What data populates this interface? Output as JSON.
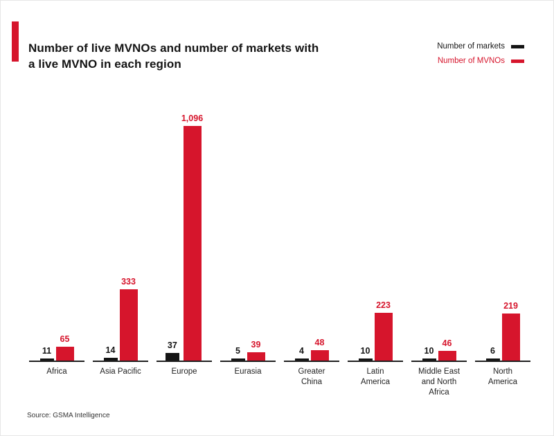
{
  "header": {
    "title_line1": "Number of live MVNOs and number of markets with",
    "title_line2": "a live MVNO in each region"
  },
  "legend": {
    "markets_label": "Number of markets",
    "mvnos_label": "Number of MVNOs"
  },
  "source": "Source: GSMA Intelligence",
  "colors": {
    "markets": "#141414",
    "mvnos": "#d6152c",
    "accent": "#d6152c"
  },
  "chart_data": {
    "type": "bar",
    "title": "Number of live MVNOs and number of markets with a live MVNO in each region",
    "categories": [
      "Africa",
      "Asia Pacific",
      "Europe",
      "Eurasia",
      "Greater China",
      "Latin America",
      "Middle East and North Africa",
      "North America"
    ],
    "category_display": [
      "Africa",
      "Asia Pacific",
      "Europe",
      "Eurasia",
      "Greater\nChina",
      "Latin\nAmerica",
      "Middle East\nand North\nAfrica",
      "North\nAmerica"
    ],
    "series": [
      {
        "name": "Number of markets",
        "color": "#141414",
        "values": [
          11,
          14,
          37,
          5,
          4,
          10,
          10,
          6
        ],
        "labels": [
          "11",
          "14",
          "37",
          "5",
          "4",
          "10",
          "10",
          "6"
        ]
      },
      {
        "name": "Number of MVNOs",
        "color": "#d6152c",
        "values": [
          65,
          333,
          1096,
          39,
          48,
          223,
          46,
          219
        ],
        "labels": [
          "65",
          "333",
          "1,096",
          "39",
          "48",
          "223",
          "46",
          "219"
        ]
      }
    ],
    "ylim": [
      0,
      1100
    ],
    "grid": false,
    "legend_position": "top-right",
    "source": "Source: GSMA Intelligence"
  }
}
